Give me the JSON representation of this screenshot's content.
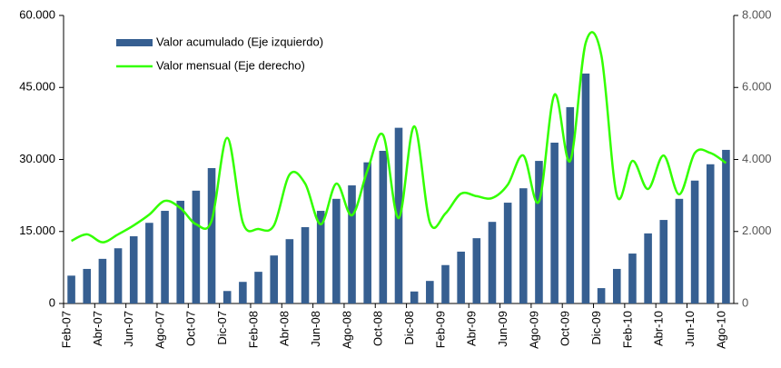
{
  "chart_data": {
    "type": "bar_line",
    "categories": [
      "Feb-07",
      null,
      "Abr-07",
      null,
      "Jun-07",
      null,
      "Ago-07",
      null,
      "Oct-07",
      null,
      "Dic-07",
      null,
      "Feb-08",
      null,
      "Abr-08",
      null,
      "Jun-08",
      null,
      "Ago-08",
      null,
      "Oct-08",
      null,
      "Dic-08",
      null,
      "Feb-09",
      null,
      "Abr-09",
      null,
      "Jun-09",
      null,
      "Ago-09",
      null,
      "Oct-09",
      null,
      "Dic-09",
      null,
      "Feb-10",
      null,
      "Abr-10",
      null,
      "Jun-10",
      null,
      "Ago-10"
    ],
    "series": [
      {
        "name": "Valor acumulado (Eje izquierdo)",
        "type": "bar",
        "color": "#365f91",
        "values": [
          5800,
          7200,
          9300,
          11500,
          14000,
          16800,
          19300,
          21400,
          23500,
          28200,
          2600,
          4500,
          6600,
          10000,
          13400,
          15900,
          19300,
          21800,
          24600,
          29400,
          31800,
          36600,
          2500,
          4700,
          8000,
          10800,
          13600,
          17000,
          21000,
          24000,
          29700,
          33500,
          40900,
          47900,
          3200,
          7200,
          10400,
          14600,
          17400,
          21800,
          25600,
          29000,
          32000
        ]
      },
      {
        "name": "Valor mensual (Eje derecho)",
        "type": "line",
        "axis": "y2",
        "color": "#33ff00",
        "values": [
          1740,
          1920,
          1700,
          1920,
          2170,
          2470,
          2850,
          2650,
          2200,
          2300,
          4600,
          2250,
          2070,
          2170,
          3580,
          3330,
          2200,
          3330,
          2450,
          3700,
          4680,
          2370,
          4920,
          2250,
          2500,
          3050,
          2980,
          2930,
          3300,
          4110,
          2830,
          5800,
          3960,
          7240,
          6900,
          3000,
          3960,
          3180,
          4110,
          3030,
          4180,
          4180,
          3900
        ]
      }
    ],
    "ylim": [
      0,
      60000
    ],
    "yticks": [
      0,
      {
        "value": 15000,
        "label": "15.000"
      },
      {
        "value": 30000,
        "label": "30.000"
      },
      {
        "value": 45000,
        "label": "45.000"
      },
      {
        "value": 60000,
        "label": "60.000"
      }
    ],
    "y2lim": [
      0,
      8000
    ],
    "y2ticks": [
      0,
      {
        "value": 2000,
        "label": "2.000"
      },
      {
        "value": 4000,
        "label": "4.000"
      },
      {
        "value": 6000,
        "label": "6.000"
      },
      {
        "value": 8000,
        "label": "8.000"
      }
    ],
    "grid": false,
    "legend": "top-left"
  }
}
